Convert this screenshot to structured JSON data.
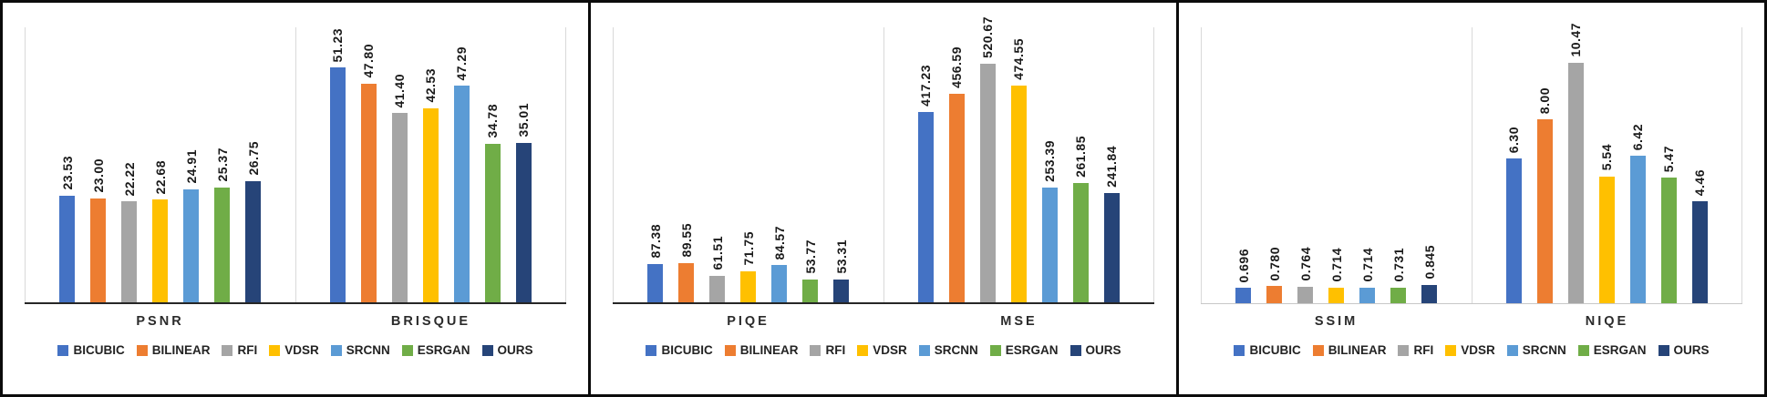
{
  "methods": [
    "BICUBIC",
    "BILINEAR",
    "RFI",
    "VDSR",
    "SRCNN",
    "ESRGAN",
    "OURS"
  ],
  "palette": {
    "bicubic": "#4472C4",
    "bilinear": "#ED7D31",
    "rfi": "#A5A5A5",
    "vdsr": "#FFC000",
    "srcnn": "#5B9BD5",
    "esrgan": "#70AD47",
    "ours": "#264478",
    "plot_border": "#D9D9D9",
    "frame_border": "#0B0B0B"
  },
  "chart_data": [
    {
      "type": "bar",
      "categories": [
        "PSNR",
        "BRISQUE"
      ],
      "ylim": [
        0,
        60
      ],
      "axis_max": 60,
      "axis_color": "#262626",
      "axis_weight": 2,
      "grid": false,
      "legend_position": "bottom",
      "series": [
        {
          "name": "BICUBIC",
          "color": "#4472C4",
          "values": [
            "23.53",
            "51.23"
          ]
        },
        {
          "name": "BILINEAR",
          "color": "#ED7D31",
          "values": [
            "23.00",
            "47.80"
          ]
        },
        {
          "name": "RFI",
          "color": "#A5A5A5",
          "values": [
            "22.22",
            "41.40"
          ]
        },
        {
          "name": "VDSR",
          "color": "#FFC000",
          "values": [
            "22.68",
            "42.53"
          ]
        },
        {
          "name": "SRCNN",
          "color": "#5B9BD5",
          "values": [
            "24.91",
            "47.29"
          ]
        },
        {
          "name": "ESRGAN",
          "color": "#70AD47",
          "values": [
            "25.37",
            "34.78"
          ]
        },
        {
          "name": "OURS",
          "color": "#264478",
          "values": [
            "26.75",
            "35.01"
          ]
        }
      ]
    },
    {
      "type": "bar",
      "categories": [
        "PIQE",
        "MSE"
      ],
      "ylim": [
        0,
        600
      ],
      "axis_max": 600,
      "axis_color": "#262626",
      "axis_weight": 2,
      "grid": false,
      "legend_position": "bottom",
      "series": [
        {
          "name": "BICUBIC",
          "color": "#4472C4",
          "values": [
            "87.38",
            "417.23"
          ]
        },
        {
          "name": "BILINEAR",
          "color": "#ED7D31",
          "values": [
            "89.55",
            "456.59"
          ]
        },
        {
          "name": "RFI",
          "color": "#A5A5A5",
          "values": [
            "61.51",
            "520.67"
          ]
        },
        {
          "name": "VDSR",
          "color": "#FFC000",
          "values": [
            "71.75",
            "474.55"
          ]
        },
        {
          "name": "SRCNN",
          "color": "#5B9BD5",
          "values": [
            "84.57",
            "253.39"
          ]
        },
        {
          "name": "ESRGAN",
          "color": "#70AD47",
          "values": [
            "53.77",
            "261.85"
          ]
        },
        {
          "name": "OURS",
          "color": "#264478",
          "values": [
            "53.31",
            "241.84"
          ]
        }
      ]
    },
    {
      "type": "bar",
      "categories": [
        "SSIM",
        "NIQE"
      ],
      "ylim": [
        0,
        12
      ],
      "axis_max": 12,
      "axis_color": "#C8C8C8",
      "axis_weight": 1,
      "grid": false,
      "legend_position": "bottom",
      "series": [
        {
          "name": "BICUBIC",
          "color": "#4472C4",
          "values": [
            "0.696",
            "6.30"
          ]
        },
        {
          "name": "BILINEAR",
          "color": "#ED7D31",
          "values": [
            "0.780",
            "8.00"
          ]
        },
        {
          "name": "RFI",
          "color": "#A5A5A5",
          "values": [
            "0.764",
            "10.47"
          ]
        },
        {
          "name": "VDSR",
          "color": "#FFC000",
          "values": [
            "0.714",
            "5.54"
          ]
        },
        {
          "name": "SRCNN",
          "color": "#5B9BD5",
          "values": [
            "0.714",
            "6.42"
          ]
        },
        {
          "name": "ESRGAN",
          "color": "#70AD47",
          "values": [
            "0.731",
            "5.47"
          ]
        },
        {
          "name": "OURS",
          "color": "#264478",
          "values": [
            "0.845",
            "4.46"
          ]
        }
      ]
    }
  ]
}
